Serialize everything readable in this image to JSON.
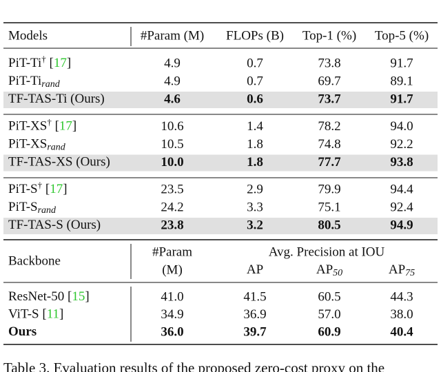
{
  "table": {
    "header": [
      "Models",
      "#Param (M)",
      "FLOPs (B)",
      "Top-1 (%)",
      "Top-5 (%)"
    ],
    "groups": [
      {
        "rows": [
          {
            "model": [
              {
                "text": "PiT-Ti"
              },
              {
                "text": "†",
                "style": "sup"
              },
              {
                "text": " ["
              },
              {
                "text": "17",
                "style": "cite"
              },
              {
                "text": "]"
              }
            ],
            "cells": [
              "4.9",
              "0.7",
              "73.8",
              "91.7"
            ],
            "shaded": false,
            "bold": false
          },
          {
            "model": [
              {
                "text": "PiT-Ti"
              },
              {
                "text": "rand",
                "style": "sub"
              }
            ],
            "cells": [
              "4.9",
              "0.7",
              "69.7",
              "89.1"
            ],
            "shaded": false,
            "bold": false
          },
          {
            "model": [
              {
                "text": "TF-TAS-Ti (Ours)"
              }
            ],
            "cells": [
              "4.6",
              "0.6",
              "73.7",
              "91.7"
            ],
            "shaded": true,
            "bold": true
          }
        ]
      },
      {
        "rows": [
          {
            "model": [
              {
                "text": "PiT-XS"
              },
              {
                "text": "†",
                "style": "sup"
              },
              {
                "text": " ["
              },
              {
                "text": "17",
                "style": "cite"
              },
              {
                "text": "]"
              }
            ],
            "cells": [
              "10.6",
              "1.4",
              "78.2",
              "94.0"
            ],
            "shaded": false,
            "bold": false
          },
          {
            "model": [
              {
                "text": "PiT-XS"
              },
              {
                "text": "rand",
                "style": "sub"
              }
            ],
            "cells": [
              "10.5",
              "1.8",
              "74.8",
              "92.2"
            ],
            "shaded": false,
            "bold": false
          },
          {
            "model": [
              {
                "text": "TF-TAS-XS (Ours)"
              }
            ],
            "cells": [
              "10.0",
              "1.8",
              "77.7",
              "93.8"
            ],
            "shaded": true,
            "bold": true
          }
        ]
      },
      {
        "rows": [
          {
            "model": [
              {
                "text": "PiT-S"
              },
              {
                "text": "†",
                "style": "sup"
              },
              {
                "text": " ["
              },
              {
                "text": "17",
                "style": "cite"
              },
              {
                "text": "]"
              }
            ],
            "cells": [
              "23.5",
              "2.9",
              "79.9",
              "94.4"
            ],
            "shaded": false,
            "bold": false
          },
          {
            "model": [
              {
                "text": "PiT-S"
              },
              {
                "text": "rand",
                "style": "sub"
              }
            ],
            "cells": [
              "24.2",
              "3.3",
              "75.1",
              "92.4"
            ],
            "shaded": false,
            "bold": false
          },
          {
            "model": [
              {
                "text": "TF-TAS-S (Ours)"
              }
            ],
            "cells": [
              "23.8",
              "3.2",
              "80.5",
              "94.9"
            ],
            "shaded": true,
            "bold": true
          }
        ]
      }
    ]
  },
  "detection": {
    "backbone": "Backbone",
    "param": [
      "#Param",
      "(M)"
    ],
    "span": "Avg. Precision at IOU",
    "cols": [
      [
        {
          "text": "AP"
        }
      ],
      [
        {
          "text": "AP"
        },
        {
          "text": "50",
          "style": "sub"
        }
      ],
      [
        {
          "text": "AP"
        },
        {
          "text": "75",
          "style": "sub"
        }
      ]
    ],
    "rows": [
      {
        "model": [
          {
            "text": "ResNet-50 ["
          },
          {
            "text": "15",
            "style": "cite"
          },
          {
            "text": "]"
          }
        ],
        "cells": [
          "41.0",
          "41.5",
          "60.5",
          "44.3"
        ],
        "bold": false
      },
      {
        "model": [
          {
            "text": "ViT-S ["
          },
          {
            "text": "11",
            "style": "cite"
          },
          {
            "text": "]"
          }
        ],
        "cells": [
          "34.9",
          "36.9",
          "57.0",
          "38.0"
        ],
        "bold": false
      },
      {
        "model": [
          {
            "text": "Ours"
          }
        ],
        "cells": [
          "36.0",
          "39.7",
          "60.9",
          "40.4"
        ],
        "bold": true
      }
    ]
  },
  "caption": "Table 3. Evaluation results of the proposed zero-cost proxy on the"
}
